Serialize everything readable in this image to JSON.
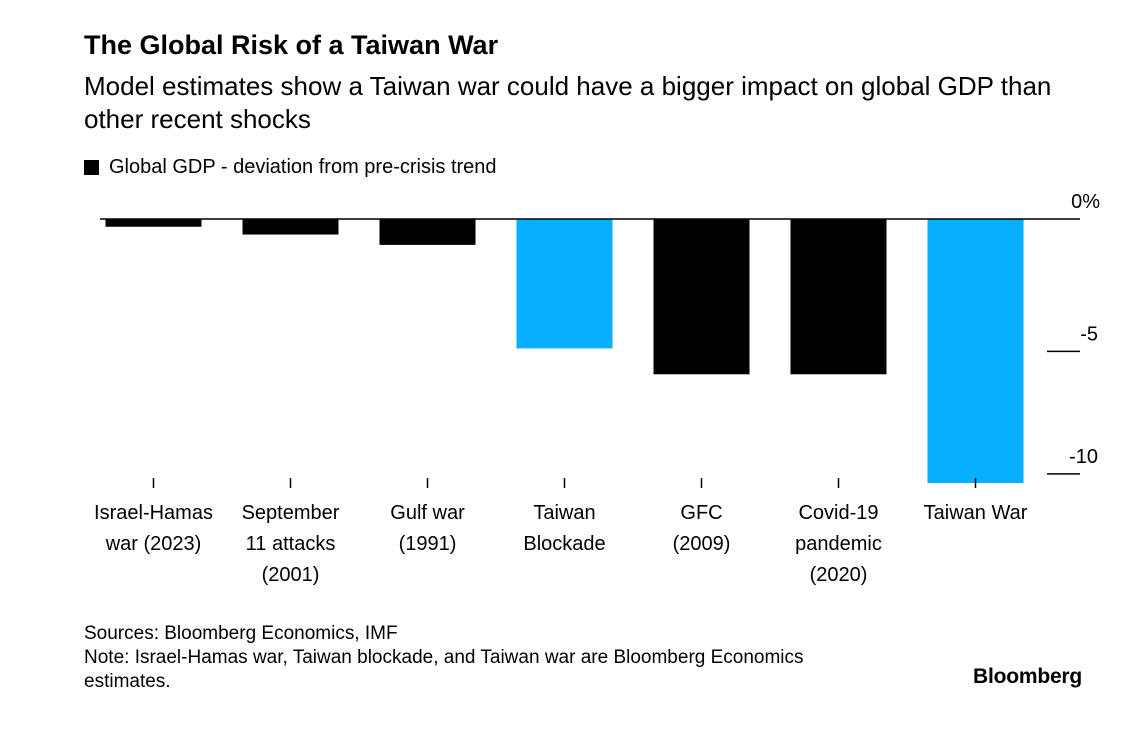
{
  "title": "The Global Risk of a Taiwan War",
  "subtitle": "Model estimates show a Taiwan war could have a bigger impact on global GDP than other recent shocks",
  "legend": {
    "label": "Global GDP - deviation from pre-crisis trend",
    "color": "#000000"
  },
  "sources": "Sources: Bloomberg Economics, IMF",
  "note": "Note: Israel-Hamas war, Taiwan blockade, and Taiwan war are Bloomberg Economics estimates.",
  "brand": "Bloomberg",
  "colors": {
    "default_bar": "#000000",
    "highlight_bar": "#08aeff",
    "axis": "#000000"
  },
  "chart_data": {
    "type": "bar",
    "categories": [
      [
        "Israel-Hamas",
        "war (2023)"
      ],
      [
        "September",
        "11 attacks",
        "(2001)"
      ],
      [
        "Gulf war",
        "(1991)"
      ],
      [
        "Taiwan",
        "Blockade"
      ],
      [
        "GFC",
        "(2009)"
      ],
      [
        "Covid-19",
        "pandemic",
        "(2020)"
      ],
      [
        "Taiwan War"
      ]
    ],
    "values": [
      -0.3,
      -0.6,
      -1.0,
      -5.0,
      -6.0,
      -6.0,
      -10.2
    ],
    "highlight": [
      false,
      false,
      false,
      true,
      false,
      false,
      true
    ],
    "y_ticks": [
      {
        "value": 0,
        "label": "0%"
      },
      {
        "value": -5,
        "label": "-5"
      },
      {
        "value": -10,
        "label": "-10"
      }
    ],
    "ylim": [
      -10.2,
      0
    ],
    "y_axis_position": "right",
    "legend_position": "top-left",
    "grid": false
  }
}
